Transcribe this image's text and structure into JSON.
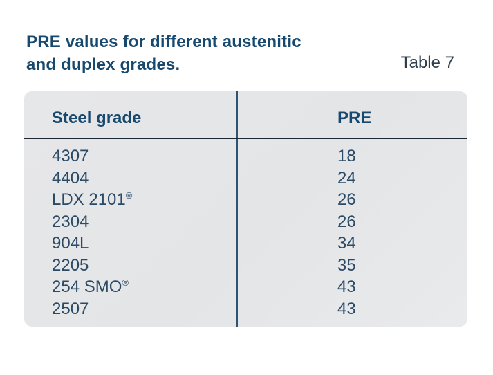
{
  "header": {
    "title_line1": "PRE values for different austenitic",
    "title_line2": "and duplex grades.",
    "table_label": "Table 7"
  },
  "table": {
    "headers": {
      "steel_grade": "Steel grade",
      "pre": "PRE"
    },
    "rows": [
      {
        "grade": "4307",
        "mark": "",
        "pre": "18"
      },
      {
        "grade": "4404",
        "mark": "",
        "pre": "24"
      },
      {
        "grade": "LDX 2101",
        "mark": "®",
        "pre": "26"
      },
      {
        "grade": "2304",
        "mark": "",
        "pre": "26"
      },
      {
        "grade": "904L",
        "mark": "",
        "pre": "34"
      },
      {
        "grade": "2205",
        "mark": "",
        "pre": "35"
      },
      {
        "grade": "254 SMO",
        "mark": "®",
        "pre": "43"
      },
      {
        "grade": "2507",
        "mark": "",
        "pre": "43"
      }
    ]
  },
  "chart_data": {
    "type": "table",
    "title": "PRE values for different austenitic and duplex grades. Table 7",
    "columns": [
      "Steel grade",
      "PRE"
    ],
    "rows": [
      [
        "4307",
        18
      ],
      [
        "4404",
        24
      ],
      [
        "LDX 2101®",
        26
      ],
      [
        "2304",
        26
      ],
      [
        "904L",
        34
      ],
      [
        "2205",
        35
      ],
      [
        "254 SMO®",
        43
      ],
      [
        "2507",
        43
      ]
    ]
  },
  "colors": {
    "title_blue": "#17496f",
    "body_blue": "#2b4a66",
    "label_slate": "#2f3e4a",
    "table_bg": "#e4e5e7",
    "header_rule": "#1c2833",
    "divider": "#2d5473",
    "page_bg": "#ffffff"
  }
}
